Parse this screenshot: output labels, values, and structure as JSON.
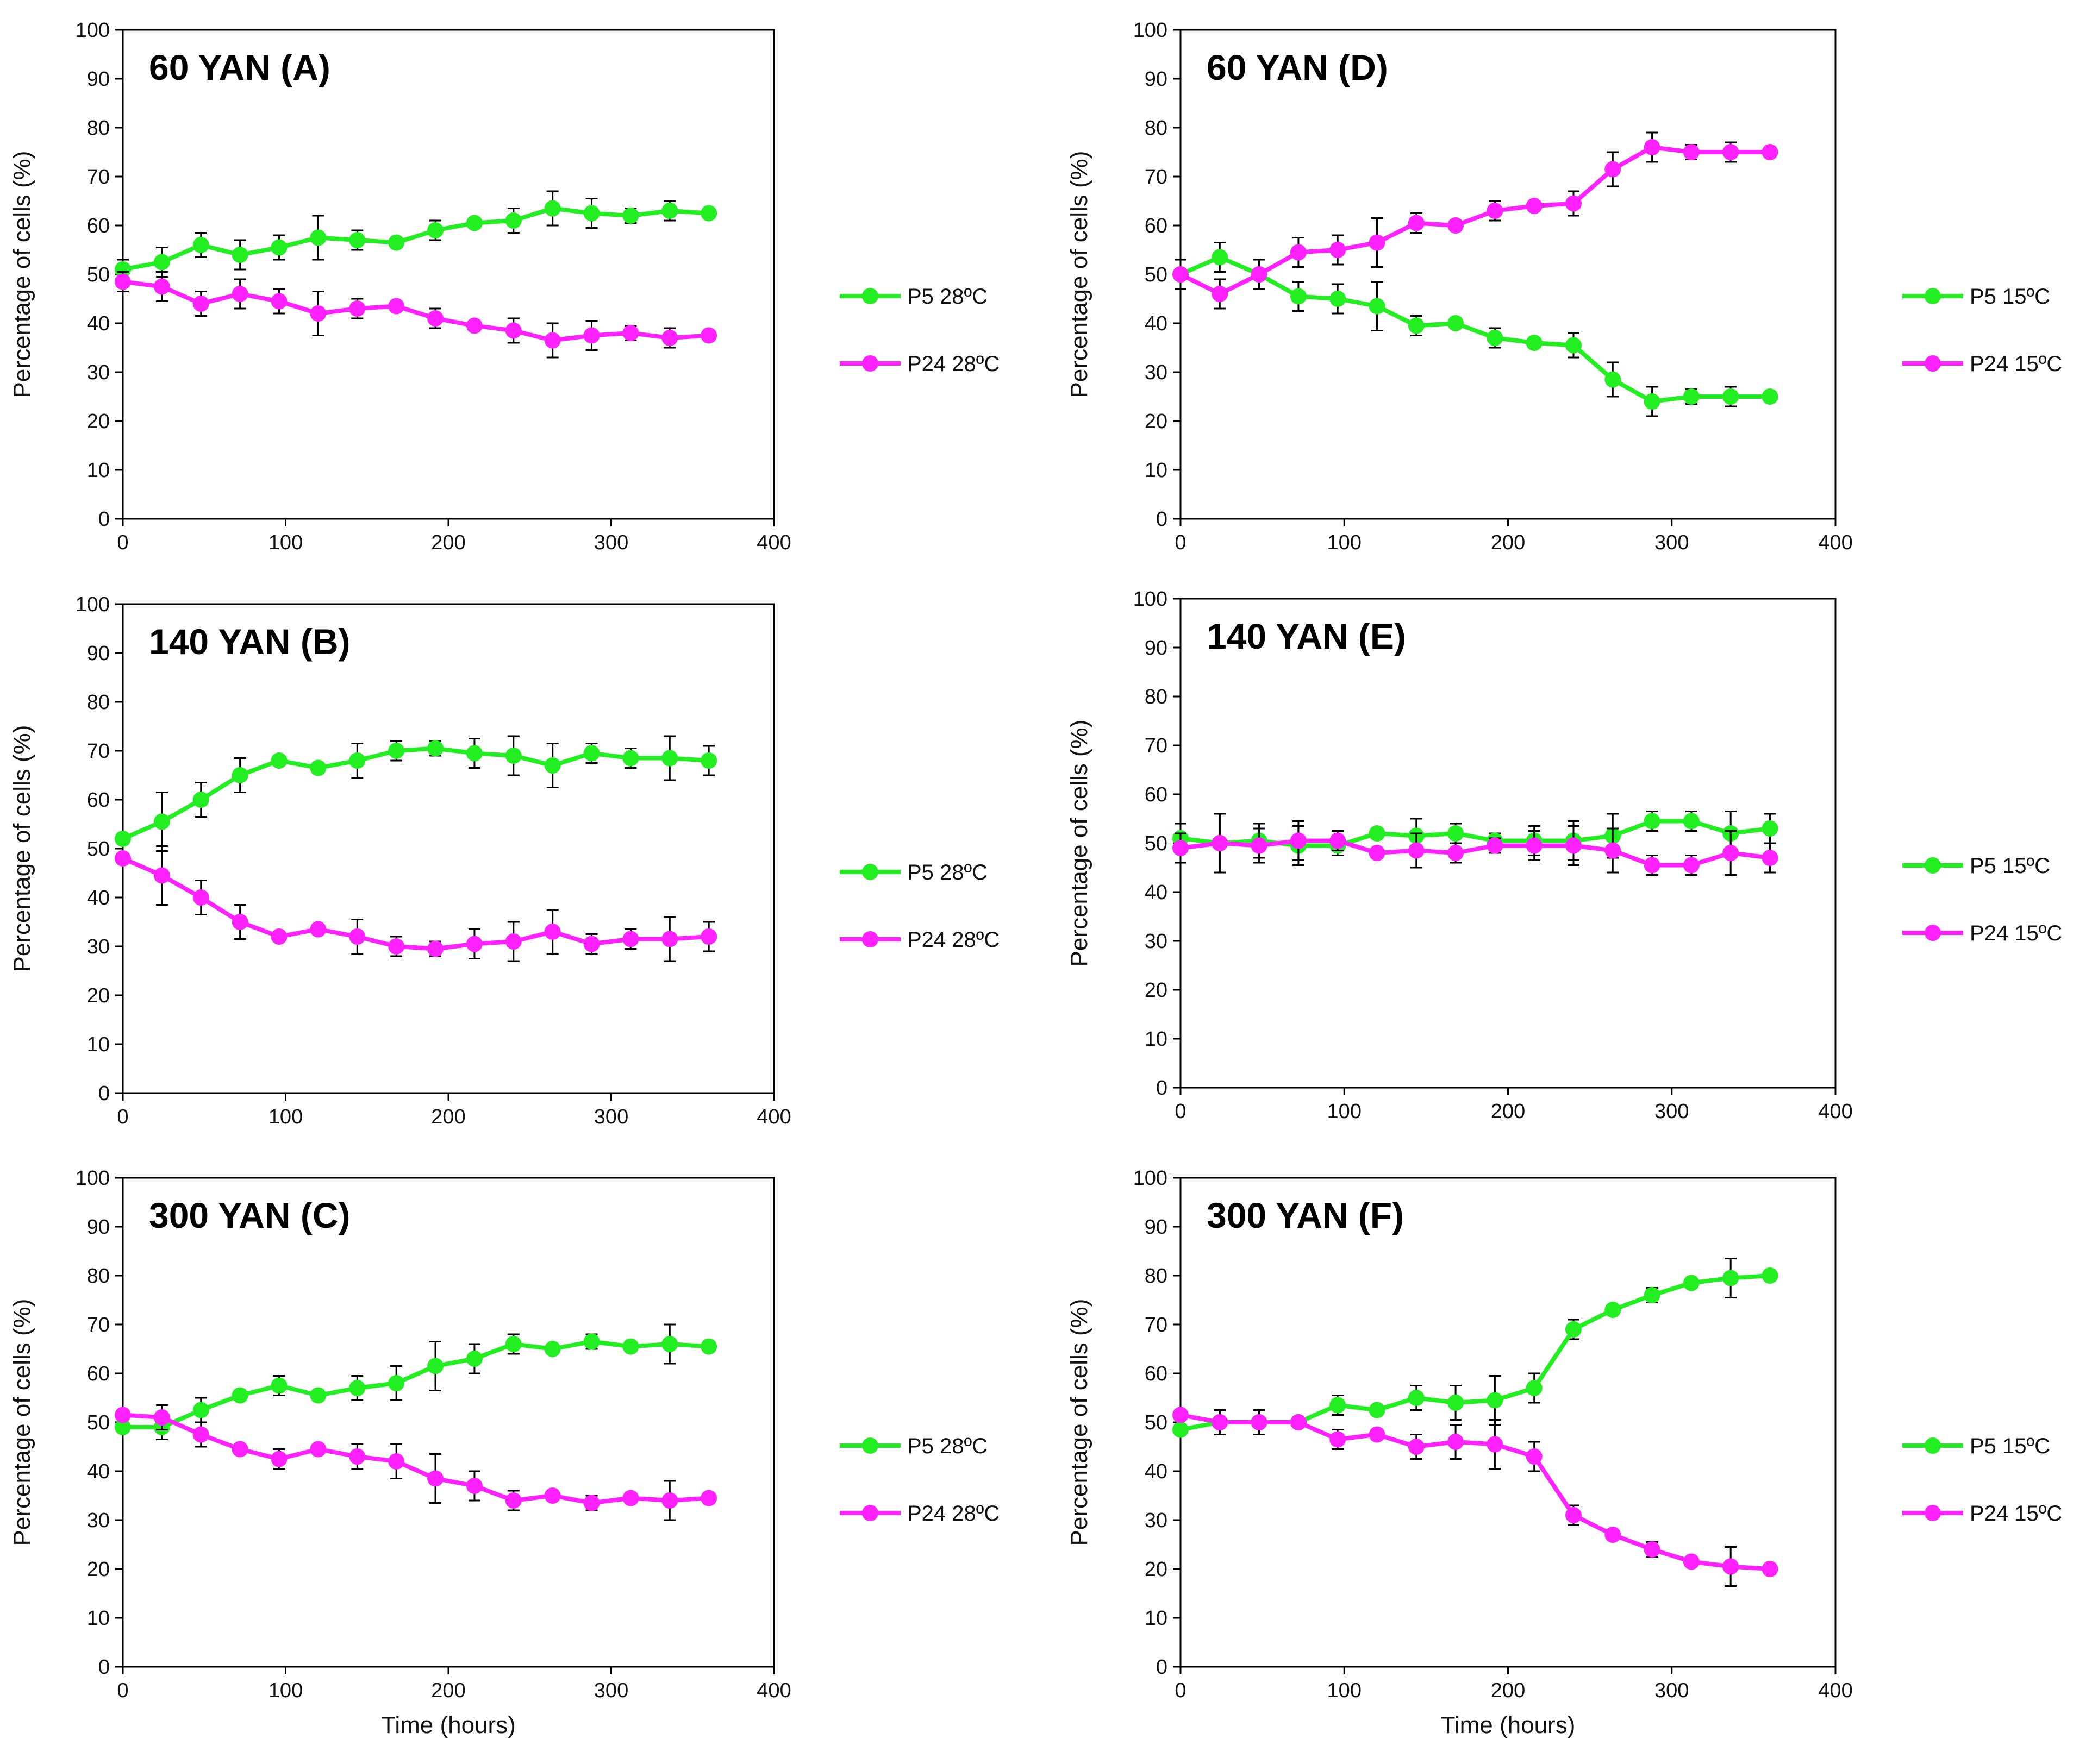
{
  "chart_data": [
    {
      "type": "line",
      "title": "60 YAN (A)",
      "xlabel": "",
      "ylabel": "Percentage of cells (%)",
      "xlim": [
        0,
        400
      ],
      "ylim": [
        0,
        100
      ],
      "x_ticks": [
        "0",
        "100",
        "200",
        "300",
        "400"
      ],
      "y_ticks": [
        "0",
        "10",
        "20",
        "30",
        "40",
        "50",
        "60",
        "70",
        "80",
        "90",
        "100"
      ],
      "x": [
        0,
        24,
        48,
        72,
        96,
        120,
        144,
        168,
        192,
        216,
        240,
        264,
        288,
        312,
        336,
        360
      ],
      "series": [
        {
          "name": "P5 28ºC",
          "color": "#22ee22",
          "values": [
            51,
            52.5,
            56,
            54,
            55.5,
            57.5,
            57,
            56.5,
            59,
            60.5,
            61,
            63.5,
            62.5,
            62,
            63,
            62.5
          ],
          "errors": [
            2,
            3,
            2.5,
            3,
            2.5,
            4.5,
            2,
            1,
            2,
            1,
            2.5,
            3.5,
            3,
            1.5,
            2,
            0.5
          ]
        },
        {
          "name": "P24 28ºC",
          "color": "#ff22ff",
          "values": [
            48.5,
            47.5,
            44,
            46,
            44.5,
            42,
            43,
            43.5,
            41,
            39.5,
            38.5,
            36.5,
            37.5,
            38,
            37,
            37.5
          ],
          "errors": [
            2,
            3,
            2.5,
            3,
            2.5,
            4.5,
            2,
            1,
            2,
            1,
            2.5,
            3.5,
            3,
            1.5,
            2,
            0.5
          ]
        }
      ]
    },
    {
      "type": "line",
      "title": "140 YAN (B)",
      "xlabel": "",
      "ylabel": "Percentage of cells (%)",
      "xlim": [
        0,
        400
      ],
      "ylim": [
        0,
        100
      ],
      "x_ticks": [
        "0",
        "100",
        "200",
        "300",
        "400"
      ],
      "y_ticks": [
        "0",
        "10",
        "20",
        "30",
        "40",
        "50",
        "60",
        "70",
        "80",
        "90",
        "100"
      ],
      "x": [
        0,
        24,
        48,
        72,
        96,
        120,
        144,
        168,
        192,
        216,
        240,
        264,
        288,
        312,
        336,
        360
      ],
      "series": [
        {
          "name": "P5 28ºC",
          "color": "#22ee22",
          "values": [
            52,
            55.5,
            60,
            65,
            68,
            66.5,
            68,
            70,
            70.5,
            69.5,
            69,
            67,
            69.5,
            68.5,
            68.5,
            68
          ],
          "errors": [
            1,
            6,
            3.5,
            3.5,
            1,
            1,
            3.5,
            2,
            1.5,
            3,
            4,
            4.5,
            2,
            2,
            4.5,
            3
          ]
        },
        {
          "name": "P24 28ºC",
          "color": "#ff22ff",
          "values": [
            48,
            44.5,
            40,
            35,
            32,
            33.5,
            32,
            30,
            29.5,
            30.5,
            31,
            33,
            30.5,
            31.5,
            31.5,
            32
          ],
          "errors": [
            1,
            6,
            3.5,
            3.5,
            1,
            1,
            3.5,
            2,
            1.5,
            3,
            4,
            4.5,
            2,
            2,
            4.5,
            3
          ]
        }
      ]
    },
    {
      "type": "line",
      "title": "300 YAN (C)",
      "xlabel": "Time (hours)",
      "ylabel": "Percentage of cells (%)",
      "xlim": [
        0,
        400
      ],
      "ylim": [
        0,
        100
      ],
      "x_ticks": [
        "0",
        "100",
        "200",
        "300",
        "400"
      ],
      "y_ticks": [
        "0",
        "10",
        "20",
        "30",
        "40",
        "50",
        "60",
        "70",
        "80",
        "90",
        "100"
      ],
      "x": [
        0,
        24,
        48,
        72,
        96,
        120,
        144,
        168,
        192,
        216,
        240,
        264,
        288,
        312,
        336,
        360
      ],
      "series": [
        {
          "name": "P5 28ºC",
          "color": "#22ee22",
          "values": [
            49,
            49,
            52.5,
            55.5,
            57.5,
            55.5,
            57,
            58,
            61.5,
            63,
            66,
            65,
            66.5,
            65.5,
            66,
            65.5
          ],
          "errors": [
            1,
            2.5,
            2.5,
            1,
            2,
            1,
            2.5,
            3.5,
            5,
            3,
            2,
            1,
            1.5,
            1,
            4,
            1
          ]
        },
        {
          "name": "P24 28ºC",
          "color": "#ff22ff",
          "values": [
            51.5,
            51,
            47.5,
            44.5,
            42.5,
            44.5,
            43,
            42,
            38.5,
            37,
            34,
            35,
            33.5,
            34.5,
            34,
            34.5
          ],
          "errors": [
            1,
            2.5,
            2.5,
            1,
            2,
            1,
            2.5,
            3.5,
            5,
            3,
            2,
            1,
            1.5,
            1,
            4,
            1
          ]
        }
      ]
    },
    {
      "type": "line",
      "title": "60 YAN (D)",
      "xlabel": "",
      "ylabel": "Percentage of cells (%)",
      "xlim": [
        0,
        400
      ],
      "ylim": [
        0,
        100
      ],
      "x_ticks": [
        "0",
        "100",
        "200",
        "300",
        "400"
      ],
      "y_ticks": [
        "0",
        "10",
        "20",
        "30",
        "40",
        "50",
        "60",
        "70",
        "80",
        "90",
        "100"
      ],
      "x": [
        0,
        24,
        48,
        72,
        96,
        120,
        144,
        168,
        192,
        216,
        240,
        264,
        288,
        312,
        336,
        360
      ],
      "series": [
        {
          "name": "P5 15ºC",
          "color": "#22ee22",
          "values": [
            50,
            53.5,
            50,
            45.5,
            45,
            43.5,
            39.5,
            40,
            37,
            36,
            35.5,
            28.5,
            24,
            25,
            25,
            25
          ],
          "errors": [
            3,
            3,
            3,
            3,
            3,
            5,
            2,
            1,
            2,
            1,
            2.5,
            3.5,
            3,
            1.5,
            2,
            0.5
          ]
        },
        {
          "name": "P24 15ºC",
          "color": "#ff22ff",
          "values": [
            50,
            46,
            50,
            54.5,
            55,
            56.5,
            60.5,
            60,
            63,
            64,
            64.5,
            71.5,
            76,
            75,
            75,
            75
          ],
          "errors": [
            3,
            3,
            3,
            3,
            3,
            5,
            2,
            1,
            2,
            1,
            2.5,
            3.5,
            3,
            1.5,
            2,
            0.5
          ]
        }
      ]
    },
    {
      "type": "line",
      "title": "140 YAN (E)",
      "xlabel": "",
      "ylabel": "Percentage of cells (%)",
      "xlim": [
        0,
        400
      ],
      "ylim": [
        0,
        100
      ],
      "x_ticks": [
        "0",
        "100",
        "200",
        "300",
        "400"
      ],
      "y_ticks": [
        "0",
        "10",
        "20",
        "30",
        "40",
        "50",
        "60",
        "70",
        "80",
        "90",
        "100"
      ],
      "x": [
        0,
        24,
        48,
        72,
        96,
        120,
        144,
        168,
        192,
        216,
        240,
        264,
        288,
        312,
        336,
        360
      ],
      "series": [
        {
          "name": "P5 15ºC",
          "color": "#22ee22",
          "values": [
            51,
            50,
            50.5,
            49.5,
            49.5,
            52,
            51.5,
            52,
            50.5,
            50.5,
            50.5,
            51.5,
            54.5,
            54.5,
            52,
            53
          ],
          "errors": [
            3,
            6,
            3.5,
            4,
            2,
            1,
            3.5,
            2,
            1.5,
            3,
            4,
            4.5,
            2,
            2,
            4.5,
            3
          ]
        },
        {
          "name": "P24 15ºC",
          "color": "#ff22ff",
          "values": [
            49,
            50,
            49.5,
            50.5,
            50.5,
            48,
            48.5,
            48,
            49.5,
            49.5,
            49.5,
            48.5,
            45.5,
            45.5,
            48,
            47
          ],
          "errors": [
            3,
            6,
            3.5,
            4,
            2,
            1,
            3.5,
            2,
            1.5,
            3,
            4,
            4.5,
            2,
            2,
            4.5,
            3
          ]
        }
      ]
    },
    {
      "type": "line",
      "title": "300 YAN (F)",
      "xlabel": "Time (hours)",
      "ylabel": "Percentage of cells (%)",
      "xlim": [
        0,
        400
      ],
      "ylim": [
        0,
        100
      ],
      "x_ticks": [
        "0",
        "100",
        "200",
        "300",
        "400"
      ],
      "y_ticks": [
        "0",
        "10",
        "20",
        "30",
        "40",
        "50",
        "60",
        "70",
        "80",
        "90",
        "100"
      ],
      "x": [
        0,
        24,
        48,
        72,
        96,
        120,
        144,
        168,
        192,
        216,
        240,
        264,
        288,
        312,
        336,
        360
      ],
      "series": [
        {
          "name": "P5 15ºC",
          "color": "#22ee22",
          "values": [
            48.5,
            50,
            50,
            50,
            53.5,
            52.5,
            55,
            54,
            54.5,
            57,
            69,
            73,
            76,
            78.5,
            79.5,
            80
          ],
          "errors": [
            1,
            2.5,
            2.5,
            1,
            2,
            1,
            2.5,
            3.5,
            5,
            3,
            2,
            1,
            1.5,
            1,
            4,
            1
          ]
        },
        {
          "name": "P24 15ºC",
          "color": "#ff22ff",
          "values": [
            51.5,
            50,
            50,
            50,
            46.5,
            47.5,
            45,
            46,
            45.5,
            43,
            31,
            27,
            24,
            21.5,
            20.5,
            20
          ],
          "errors": [
            1,
            2.5,
            2.5,
            1,
            2,
            1,
            2.5,
            3.5,
            5,
            3,
            2,
            1,
            1.5,
            1,
            4,
            1
          ]
        }
      ]
    }
  ]
}
